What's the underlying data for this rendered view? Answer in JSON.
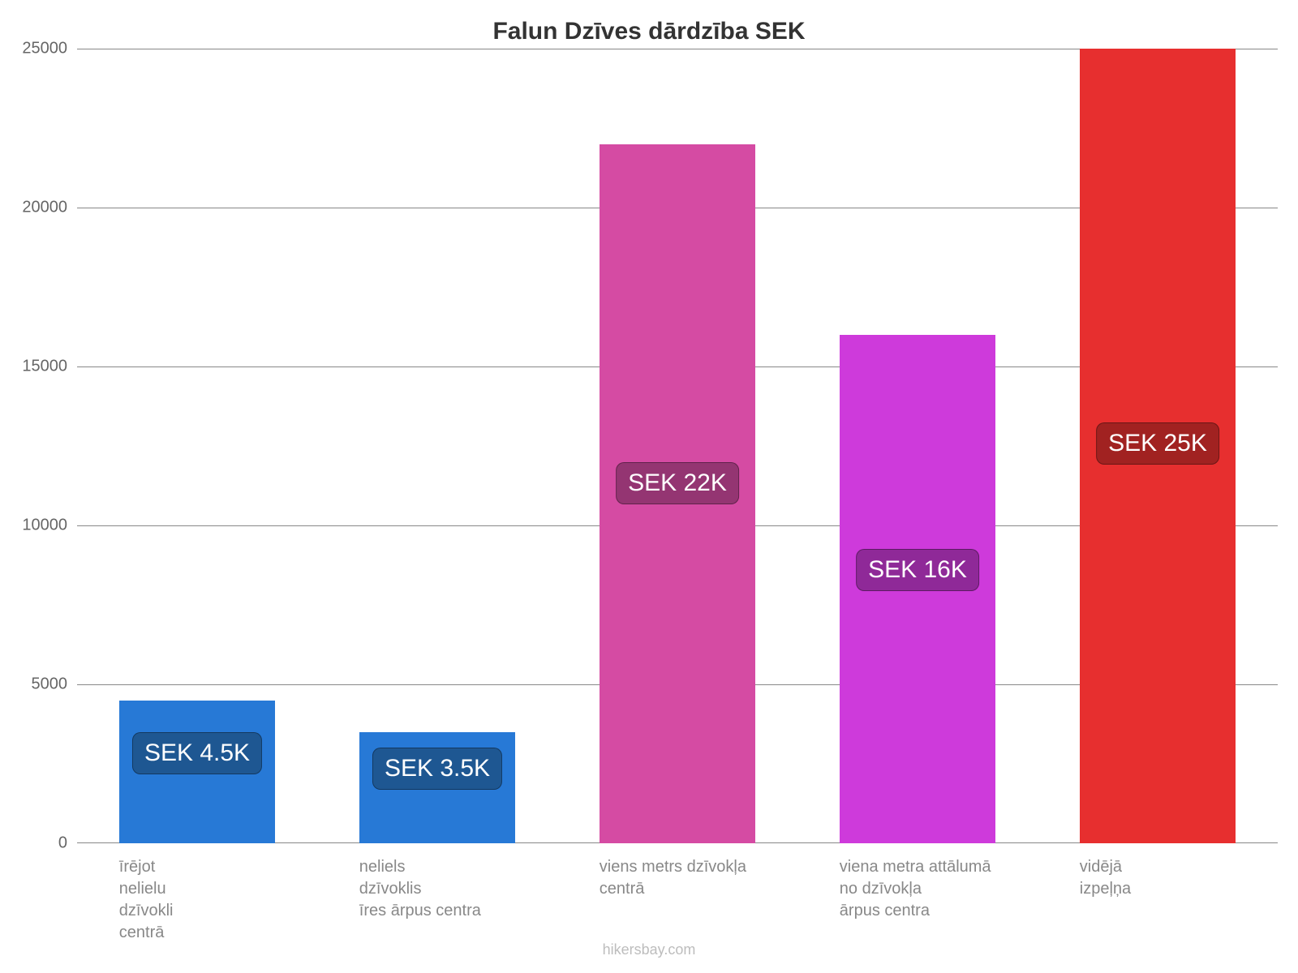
{
  "title": "Falun Dzīves dārdzība SEK",
  "attribution": "hikersbay.com",
  "chart": {
    "type": "bar",
    "background_color": "#ffffff",
    "grid_color": "#888888",
    "axis_color": "#888888",
    "title_color": "#333333",
    "title_fontsize": 30,
    "ytick_fontsize": 20,
    "ytick_color": "#666666",
    "category_label_fontsize": 20,
    "category_label_color": "#888888",
    "badge_fontsize": 30,
    "badge_text_color": "#ffffff",
    "ylim": [
      0,
      25000
    ],
    "ytick_step": 5000,
    "yticks": [
      {
        "value": 0,
        "label": "0"
      },
      {
        "value": 5000,
        "label": "5000"
      },
      {
        "value": 10000,
        "label": "10000"
      },
      {
        "value": 15000,
        "label": "15000"
      },
      {
        "value": 20000,
        "label": "20000"
      },
      {
        "value": 25000,
        "label": "25000"
      }
    ],
    "bar_width": 0.65,
    "bars": [
      {
        "category_lines": [
          "īrējot",
          "nelielu",
          "dzīvokli",
          "centrā"
        ],
        "value": 4500,
        "bar_color": "#2779d6",
        "badge_text": "SEK 4.5K",
        "badge_bg": "#1e5792",
        "badge_pos_frac": 0.86
      },
      {
        "category_lines": [
          "neliels",
          "dzīvoklis",
          "īres ārpus centra"
        ],
        "value": 3500,
        "bar_color": "#2779d6",
        "badge_text": "SEK 3.5K",
        "badge_bg": "#1e5792",
        "badge_pos_frac": 0.88
      },
      {
        "category_lines": [
          "viens metrs dzīvokļa",
          "centrā"
        ],
        "value": 22000,
        "bar_color": "#d54ba3",
        "badge_text": "SEK 22K",
        "badge_bg": "#943572",
        "badge_pos_frac": 0.52
      },
      {
        "category_lines": [
          "viena metra attālumā",
          "no dzīvokļa",
          "ārpus centra"
        ],
        "value": 16000,
        "bar_color": "#ce3adb",
        "badge_text": "SEK 16K",
        "badge_bg": "#8f2998",
        "badge_pos_frac": 0.63
      },
      {
        "category_lines": [
          "vidējā",
          "izpeļņa"
        ],
        "value": 25000,
        "bar_color": "#e72f2f",
        "badge_text": "SEK 25K",
        "badge_bg": "#a12221",
        "badge_pos_frac": 0.47
      }
    ]
  }
}
